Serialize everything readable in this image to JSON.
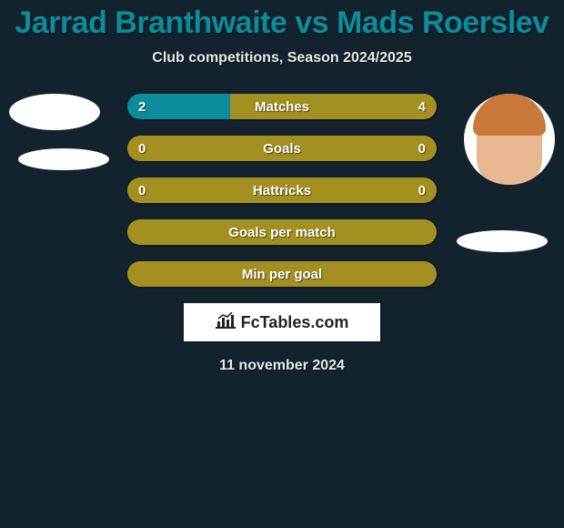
{
  "title": "Jarrad Branthwaite vs Mads Roerslev",
  "subtitle": "Club competitions, Season 2024/2025",
  "date": "11 november 2024",
  "logo_text": "FcTables.com",
  "colors": {
    "background": "#13232e",
    "title": "#0d8c9b",
    "player1": "#0d8c9b",
    "player2": "#a49021",
    "text": "#ffffff"
  },
  "bars": [
    {
      "label": "Matches",
      "left_value": "2",
      "right_value": "4",
      "left_display": "2",
      "right_display": "4",
      "left_color": "#0d8c9b",
      "right_color": "#a49021",
      "left_pct": 33.3,
      "right_pct": 66.7,
      "show_values": true
    },
    {
      "label": "Goals",
      "left_value": "0",
      "right_value": "0",
      "left_display": "0",
      "right_display": "0",
      "left_color": "#a49021",
      "right_color": "#a49021",
      "left_pct": 50,
      "right_pct": 50,
      "show_values": true
    },
    {
      "label": "Hattricks",
      "left_value": "0",
      "right_value": "0",
      "left_display": "0",
      "right_display": "0",
      "left_color": "#a49021",
      "right_color": "#a49021",
      "left_pct": 50,
      "right_pct": 50,
      "show_values": true
    },
    {
      "label": "Goals per match",
      "left_value": "",
      "right_value": "",
      "left_display": "",
      "right_display": "",
      "left_color": "#a49021",
      "right_color": "#a49021",
      "left_pct": 50,
      "right_pct": 50,
      "show_values": false
    },
    {
      "label": "Min per goal",
      "left_value": "",
      "right_value": "",
      "left_display": "",
      "right_display": "",
      "left_color": "#a49021",
      "right_color": "#a49021",
      "left_pct": 50,
      "right_pct": 50,
      "show_values": false
    }
  ]
}
